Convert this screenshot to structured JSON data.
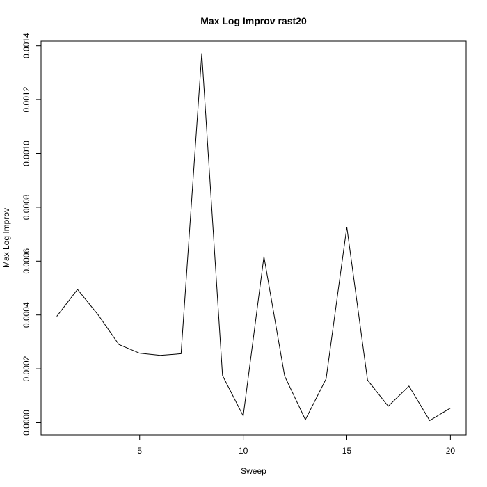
{
  "chart_data": {
    "type": "line",
    "title": "Max Log Improv rast20",
    "xlabel": "Sweep",
    "ylabel": "Max Log Improv",
    "xlim": [
      0.24,
      20.76
    ],
    "ylim": [
      -4.52e-05,
      0.0014173
    ],
    "xticks": [
      5,
      10,
      15,
      20
    ],
    "xtick_labels": [
      "5",
      "10",
      "15",
      "20"
    ],
    "yticks": [
      0,
      0.0002,
      0.0004,
      0.0006,
      0.0008,
      0.001,
      0.0012,
      0.0014
    ],
    "ytick_labels": [
      "0.0000",
      "0.0002",
      "0.0004",
      "0.0006",
      "0.0008",
      "0.0010",
      "0.0012",
      "0.0014"
    ],
    "grid": false,
    "series": [
      {
        "x": [
          1,
          2,
          3,
          4,
          5,
          6,
          7,
          8,
          9,
          10,
          11,
          12,
          13,
          14,
          15,
          16,
          17,
          18,
          19,
          20
        ],
        "values": [
          0.000395,
          0.000495,
          0.0004,
          0.00029,
          0.000258,
          0.00025,
          0.000256,
          0.001372,
          0.000175,
          2.5e-05,
          0.000617,
          0.000173,
          1.1e-05,
          0.000163,
          0.000727,
          0.000158,
          6.1e-05,
          0.000136,
          8e-06,
          5.4e-05
        ],
        "color": "#000000"
      }
    ]
  }
}
